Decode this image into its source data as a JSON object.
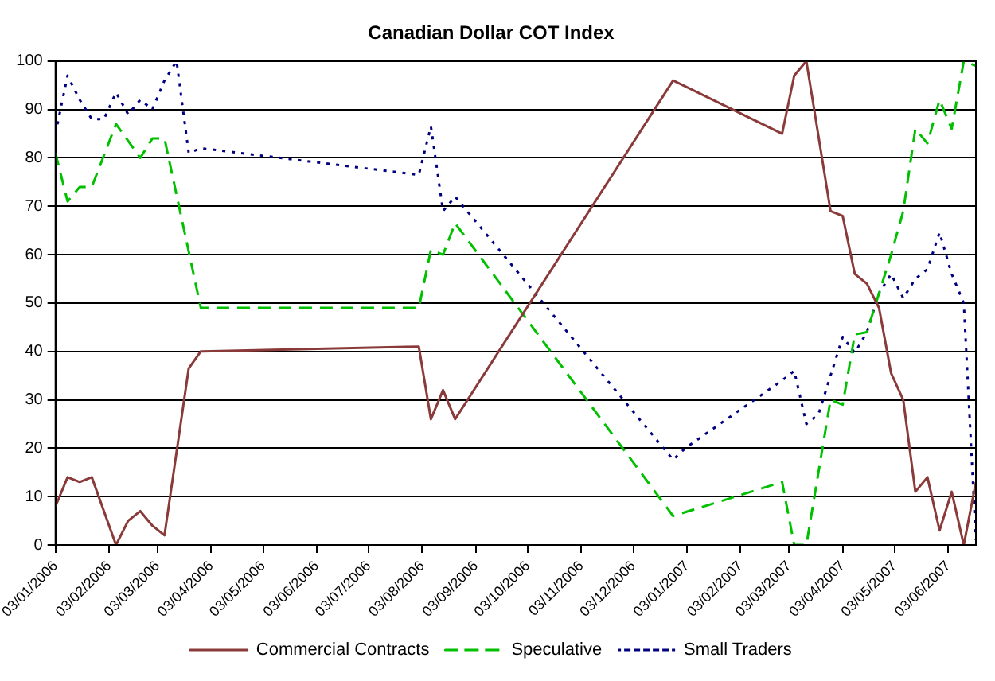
{
  "chart_data": {
    "type": "line",
    "title": "Canadian Dollar COT Index",
    "xlim": [
      "2006-01-03",
      "2007-06-19"
    ],
    "xticks": [
      {
        "value": "2006-01-03",
        "label": "03/01/2006"
      },
      {
        "value": "2006-02-03",
        "label": "03/02/2006"
      },
      {
        "value": "2006-03-03",
        "label": "03/03/2006"
      },
      {
        "value": "2006-04-03",
        "label": "03/04/2006"
      },
      {
        "value": "2006-05-03",
        "label": "03/05/2006"
      },
      {
        "value": "2006-06-03",
        "label": "03/06/2006"
      },
      {
        "value": "2006-07-03",
        "label": "03/07/2006"
      },
      {
        "value": "2006-08-03",
        "label": "03/08/2006"
      },
      {
        "value": "2006-09-03",
        "label": "03/09/2006"
      },
      {
        "value": "2006-10-03",
        "label": "03/10/2006"
      },
      {
        "value": "2006-11-03",
        "label": "03/11/2006"
      },
      {
        "value": "2006-12-03",
        "label": "03/12/2006"
      },
      {
        "value": "2007-01-03",
        "label": "03/01/2007"
      },
      {
        "value": "2007-02-03",
        "label": "03/02/2007"
      },
      {
        "value": "2007-03-03",
        "label": "03/03/2007"
      },
      {
        "value": "2007-04-03",
        "label": "03/04/2007"
      },
      {
        "value": "2007-05-03",
        "label": "03/05/2007"
      },
      {
        "value": "2007-06-03",
        "label": "03/06/2007"
      }
    ],
    "ylim": [
      0,
      100
    ],
    "yticks": [
      0,
      10,
      20,
      30,
      40,
      50,
      60,
      70,
      80,
      90,
      100
    ],
    "grid": "y",
    "legend": "bottom",
    "marker": "none",
    "series": [
      {
        "name": "Commercial Contracts",
        "color": "#8b3a3a",
        "line_style": "solid",
        "x": [
          "2006-01-03",
          "2006-01-10",
          "2006-01-17",
          "2006-01-24",
          "2006-02-07",
          "2006-02-14",
          "2006-02-21",
          "2006-02-28",
          "2006-03-07",
          "2006-03-21",
          "2006-03-28",
          "2006-08-01",
          "2006-08-08",
          "2006-08-15",
          "2006-08-22",
          "2006-12-26",
          "2007-02-27",
          "2007-03-06",
          "2007-03-13",
          "2007-03-27",
          "2007-04-03",
          "2007-04-10",
          "2007-04-17",
          "2007-04-24",
          "2007-05-01",
          "2007-05-08",
          "2007-05-15",
          "2007-05-22",
          "2007-05-29",
          "2007-06-05",
          "2007-06-12",
          "2007-06-19"
        ],
        "values": [
          8,
          14,
          13,
          14,
          0,
          5,
          7,
          4,
          2,
          36.5,
          40,
          41,
          26,
          32,
          26,
          96,
          85,
          97,
          100,
          69,
          68,
          56,
          54,
          49,
          35.5,
          30,
          11,
          14,
          3,
          11,
          0,
          13
        ]
      },
      {
        "name": "Speculative",
        "color": "#00c000",
        "line_style": "dashed",
        "x": [
          "2006-01-03",
          "2006-01-10",
          "2006-01-17",
          "2006-01-24",
          "2006-02-07",
          "2006-02-21",
          "2006-02-28",
          "2006-03-07",
          "2006-03-28",
          "2006-08-01",
          "2006-08-08",
          "2006-08-15",
          "2006-08-22",
          "2006-12-26",
          "2007-02-27",
          "2007-03-06",
          "2007-03-13",
          "2007-03-27",
          "2007-04-03",
          "2007-04-10",
          "2007-04-17",
          "2007-04-24",
          "2007-05-01",
          "2007-05-08",
          "2007-05-15",
          "2007-05-22",
          "2007-05-29",
          "2007-06-05",
          "2007-06-12",
          "2007-06-19"
        ],
        "values": [
          81,
          71,
          74,
          74,
          87,
          80,
          84,
          84,
          49,
          49,
          61,
          60,
          66.5,
          6,
          13,
          0,
          0,
          30,
          29,
          43.5,
          44,
          52,
          60,
          69,
          86,
          83,
          92,
          86,
          100,
          99
        ]
      },
      {
        "name": "Small Traders",
        "color": "#000080",
        "line_style": "dotted",
        "x": [
          "2006-01-03",
          "2006-01-10",
          "2006-01-17",
          "2006-01-24",
          "2006-01-31",
          "2006-02-07",
          "2006-02-14",
          "2006-02-21",
          "2006-02-28",
          "2006-03-07",
          "2006-03-14",
          "2006-03-21",
          "2006-03-28",
          "2006-08-01",
          "2006-08-08",
          "2006-08-15",
          "2006-08-22",
          "2006-12-26",
          "2007-01-02",
          "2007-02-27",
          "2007-03-06",
          "2007-03-13",
          "2007-03-20",
          "2007-03-27",
          "2007-04-03",
          "2007-04-10",
          "2007-04-17",
          "2007-04-24",
          "2007-05-01",
          "2007-05-08",
          "2007-05-15",
          "2007-05-22",
          "2007-05-29",
          "2007-06-05",
          "2007-06-12",
          "2007-06-19"
        ],
        "values": [
          85,
          97,
          92,
          88,
          88,
          93.5,
          89,
          92,
          90,
          96,
          100,
          81,
          82,
          76.5,
          86.5,
          69,
          72,
          17.6,
          20,
          34,
          36,
          25,
          27,
          35,
          43,
          39.7,
          44,
          52,
          56,
          51,
          55,
          57,
          64.6,
          56,
          50,
          1
        ]
      }
    ]
  }
}
